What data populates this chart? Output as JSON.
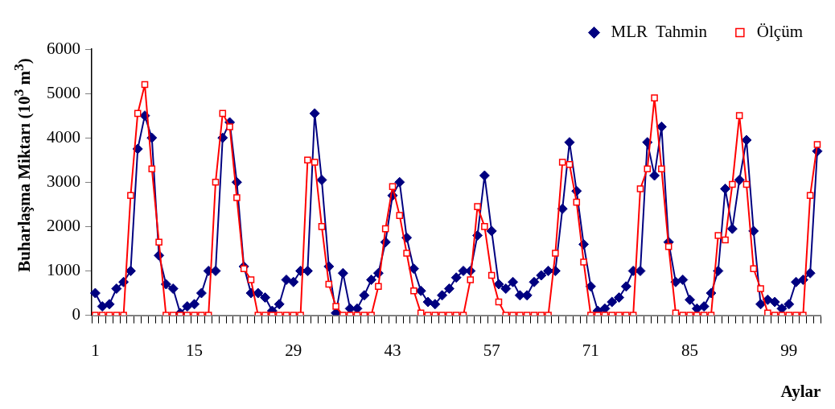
{
  "chart_data": {
    "type": "line",
    "xlabel": "Aylar",
    "ylabel": "Buharlaşma Miktarı (10$^{3}$ m$^{3}$)",
    "categories": [
      "1",
      null,
      null,
      null,
      null,
      null,
      null,
      null,
      null,
      null,
      null,
      null,
      null,
      null,
      "15",
      null,
      null,
      null,
      null,
      null,
      null,
      null,
      null,
      null,
      null,
      null,
      null,
      null,
      "29",
      null,
      null,
      null,
      null,
      null,
      null,
      null,
      null,
      null,
      null,
      null,
      null,
      null,
      "43",
      null,
      null,
      null,
      null,
      null,
      null,
      null,
      null,
      null,
      null,
      null,
      null,
      null,
      "57",
      null,
      null,
      null,
      null,
      null,
      null,
      null,
      null,
      null,
      null,
      null,
      null,
      null,
      "71",
      null,
      null,
      null,
      null,
      null,
      null,
      null,
      null,
      null,
      null,
      null,
      null,
      null,
      "85",
      null,
      null,
      null,
      null,
      null,
      null,
      null,
      null,
      null,
      null,
      null,
      null,
      null,
      "99",
      null,
      null,
      null,
      null
    ],
    "series": [
      {
        "name": "MLR  Tahmin",
        "color": "#000080",
        "marker": "diamond",
        "values": [
          500,
          200,
          250,
          600,
          750,
          1000,
          3750,
          4500,
          4000,
          1350,
          700,
          600,
          50,
          200,
          250,
          500,
          1000,
          1000,
          4000,
          4350,
          3000,
          1100,
          500,
          500,
          400,
          100,
          250,
          800,
          750,
          1000,
          1000,
          4550,
          3050,
          1100,
          50,
          950,
          150,
          150,
          450,
          800,
          950,
          1650,
          2700,
          3000,
          1750,
          1050,
          550,
          300,
          250,
          450,
          600,
          850,
          1000,
          1000,
          1800,
          3150,
          1900,
          700,
          600,
          750,
          450,
          450,
          750,
          900,
          1000,
          1000,
          2400,
          3900,
          2800,
          1600,
          650,
          100,
          150,
          300,
          400,
          650,
          1000,
          1000,
          3900,
          3150,
          4250,
          1650,
          750,
          800,
          350,
          150,
          200,
          500,
          1000,
          2850,
          1950,
          3050,
          3950,
          1900,
          250,
          350,
          300,
          150,
          250,
          750,
          800,
          950,
          3700
        ]
      },
      {
        "name": "Ölçüm",
        "color": "#ff0000",
        "marker": "square",
        "values": [
          0,
          0,
          0,
          0,
          0,
          2700,
          4550,
          5200,
          3300,
          1650,
          0,
          0,
          0,
          0,
          0,
          0,
          0,
          3000,
          4550,
          4250,
          2650,
          1050,
          800,
          0,
          0,
          0,
          0,
          0,
          0,
          0,
          3500,
          3450,
          2000,
          700,
          200,
          0,
          0,
          0,
          0,
          0,
          650,
          1950,
          2900,
          2250,
          1400,
          550,
          50,
          0,
          0,
          0,
          0,
          0,
          0,
          800,
          2450,
          2000,
          900,
          300,
          0,
          0,
          0,
          0,
          0,
          0,
          0,
          1400,
          3450,
          3400,
          2550,
          1200,
          0,
          0,
          0,
          0,
          0,
          0,
          0,
          2850,
          3300,
          4900,
          3300,
          1550,
          50,
          0,
          0,
          0,
          0,
          0,
          1800,
          1700,
          2950,
          4500,
          2950,
          1050,
          600,
          50,
          0,
          0,
          0,
          0,
          0,
          2700,
          3850
        ]
      }
    ],
    "ylim": [
      0,
      6000
    ],
    "yticks": [
      0,
      1000,
      2000,
      3000,
      4000,
      5000,
      6000
    ],
    "grid": false,
    "legend": "top right",
    "line_style": "solid"
  }
}
